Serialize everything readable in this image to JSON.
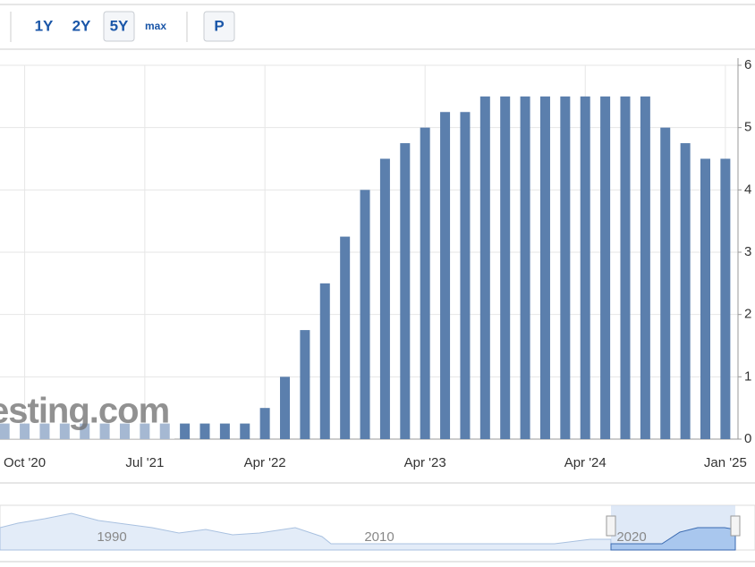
{
  "toolbar": {
    "ranges": [
      "1Y",
      "2Y",
      "5Y",
      "max"
    ],
    "selected_index": 2,
    "button": "P"
  },
  "chart_data": {
    "type": "bar",
    "categories": [
      null,
      "Oct '20",
      null,
      null,
      null,
      null,
      null,
      "Jul '21",
      null,
      null,
      null,
      null,
      null,
      "Apr '22",
      null,
      null,
      null,
      null,
      null,
      null,
      null,
      "Apr '23",
      null,
      null,
      null,
      null,
      null,
      null,
      null,
      "Apr '24",
      null,
      null,
      null,
      null,
      null,
      null,
      "Jan '25"
    ],
    "values": [
      0.25,
      0.25,
      0.25,
      0.25,
      0.25,
      0.25,
      0.25,
      0.25,
      0.25,
      0.25,
      0.25,
      0.25,
      0.25,
      0.5,
      1,
      1.75,
      2.5,
      3.25,
      4,
      4.5,
      4.75,
      5,
      5.25,
      5.25,
      5.5,
      5.5,
      5.5,
      5.5,
      5.5,
      5.5,
      5.5,
      5.5,
      5.5,
      5,
      4.75,
      4.5,
      4.5
    ],
    "color": "#5b7fad",
    "ylim": [
      0,
      6
    ],
    "yticks": [
      0,
      1,
      2,
      3,
      4,
      5,
      6
    ],
    "grid": true,
    "watermark": "esting.com"
  },
  "navigator": {
    "labels": [
      "1990",
      "2010",
      "2020"
    ]
  }
}
